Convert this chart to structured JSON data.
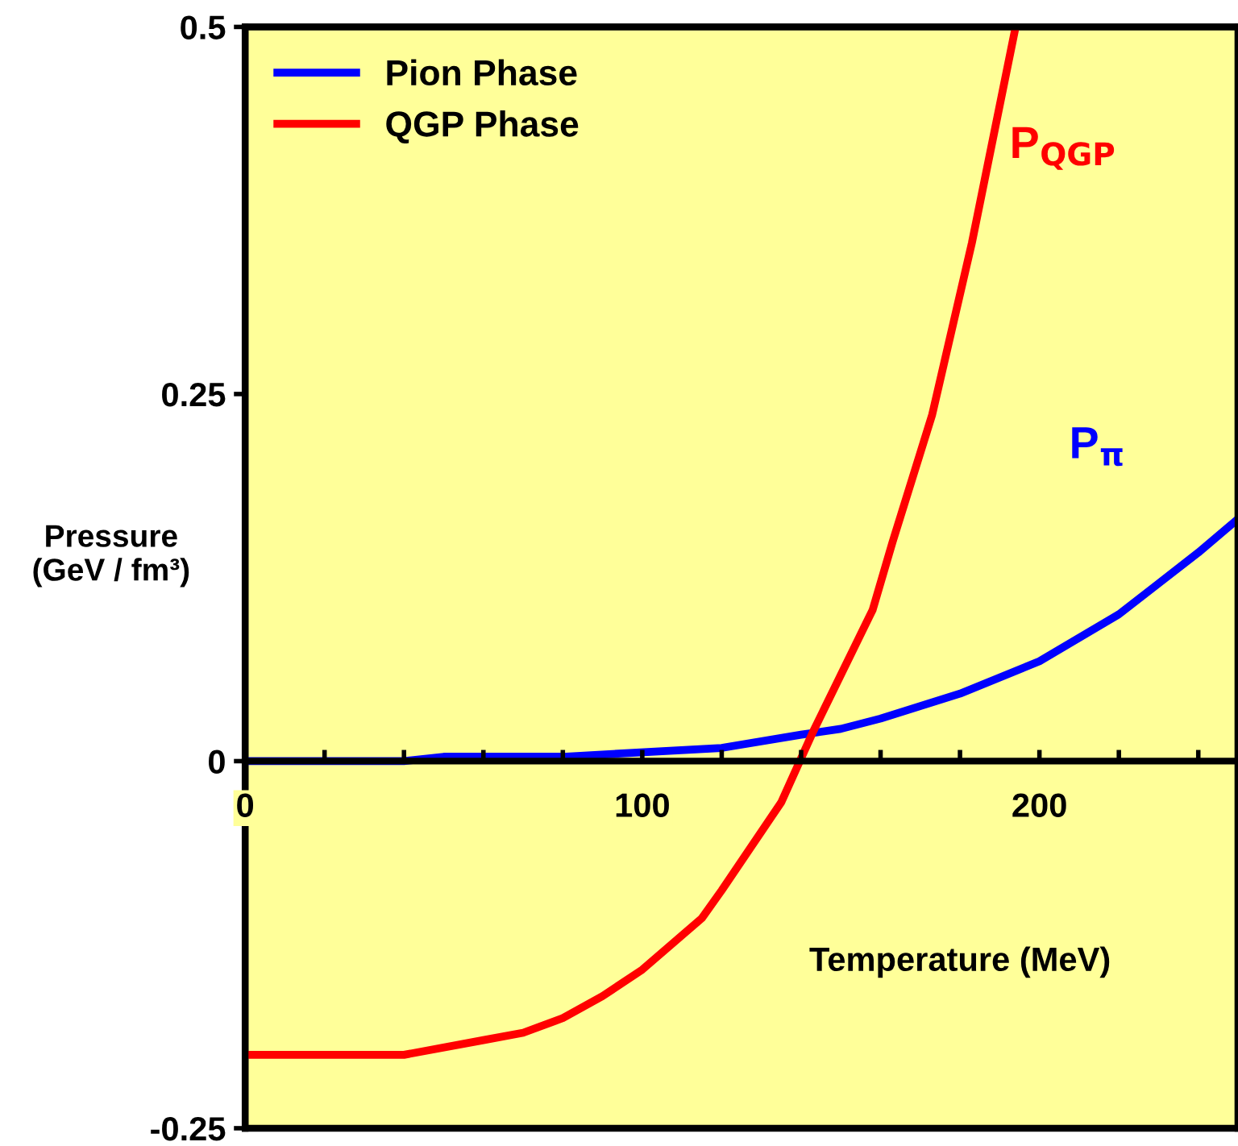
{
  "chart_data": {
    "type": "line",
    "xlabel": "Temperature (MeV)",
    "ylabel": "Pressure\n(GeV / fm³)",
    "series": [
      {
        "name": "Pion Phase",
        "color": "#0000ff",
        "x": [
          0,
          40,
          50,
          80,
          120,
          140,
          150,
          160,
          180,
          200,
          220,
          230,
          240,
          250
        ],
        "values": [
          0,
          0,
          0.003,
          0.003,
          0.009,
          0.018,
          0.022,
          0.029,
          0.046,
          0.068,
          0.1,
          0.121,
          0.142,
          0.165
        ]
      },
      {
        "name": "QGP Phase",
        "color": "#ff0000",
        "x": [
          0,
          40,
          60,
          70,
          80,
          90,
          100,
          115,
          120,
          135,
          143,
          158,
          163,
          173,
          183,
          194
        ],
        "values": [
          -0.2,
          -0.2,
          -0.19,
          -0.185,
          -0.175,
          -0.16,
          -0.142,
          -0.107,
          -0.088,
          -0.028,
          0.02,
          0.103,
          0.149,
          0.236,
          0.353,
          0.5
        ]
      }
    ],
    "annotations": [
      "P$_{π}$",
      "P$_{QGP}$"
    ],
    "xlim": [
      0,
      250
    ],
    "xticks": [
      0,
      {
        "value": 20,
        "label": null
      },
      {
        "value": 40,
        "label": null
      },
      {
        "value": 60,
        "label": null
      },
      {
        "value": 80,
        "label": null
      },
      100,
      {
        "value": 120,
        "label": null
      },
      {
        "value": 140,
        "label": null
      },
      {
        "value": 160,
        "label": null
      },
      {
        "value": 180,
        "label": null
      },
      200,
      {
        "value": 220,
        "label": null
      },
      {
        "value": 240,
        "label": null
      }
    ],
    "ylim": [
      -0.25,
      0.5
    ],
    "yticks": [
      -0.25,
      0,
      0.25,
      0.5
    ],
    "legend": "top left",
    "grid": false,
    "marker": "none",
    "line_style": "solid"
  }
}
